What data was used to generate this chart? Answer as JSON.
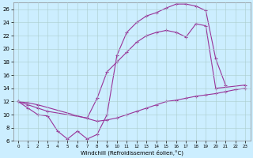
{
  "xlabel": "Windchill (Refroidissement éolien,°C)",
  "background_color": "#cceeff",
  "grid_color": "#aacccc",
  "line_color": "#993399",
  "xlim": [
    -0.5,
    23.5
  ],
  "ylim": [
    6,
    27
  ],
  "yticks": [
    6,
    8,
    10,
    12,
    14,
    16,
    18,
    20,
    22,
    24,
    26
  ],
  "xticks": [
    0,
    1,
    2,
    3,
    4,
    5,
    6,
    7,
    8,
    9,
    10,
    11,
    12,
    13,
    14,
    15,
    16,
    17,
    18,
    19,
    20,
    21,
    22,
    23
  ],
  "line1_x": [
    0,
    1,
    2,
    3,
    4,
    5,
    6,
    7,
    8,
    9,
    10,
    11,
    12,
    13,
    14,
    15,
    16,
    17,
    18,
    19,
    20,
    21
  ],
  "line1_y": [
    12,
    11,
    10,
    9.8,
    7.5,
    6.3,
    7.5,
    6.3,
    7.0,
    10.0,
    19.0,
    22.5,
    24.0,
    25.0,
    25.5,
    26.2,
    26.8,
    26.8,
    26.5,
    25.8,
    18.5,
    14.5
  ],
  "line2_x": [
    0,
    1,
    2,
    3,
    7,
    8,
    9,
    10,
    11,
    12,
    13,
    14,
    15,
    16,
    17,
    18,
    19,
    20,
    23
  ],
  "line2_y": [
    12,
    11.5,
    11.0,
    10.5,
    9.5,
    12.5,
    16.5,
    18.0,
    19.5,
    21.0,
    22.0,
    22.5,
    22.8,
    22.5,
    21.8,
    23.8,
    23.5,
    14.0,
    14.5
  ],
  "line3_x": [
    0,
    1,
    2,
    8,
    9,
    10,
    11,
    12,
    13,
    14,
    15,
    16,
    17,
    18,
    19,
    20,
    21,
    22,
    23
  ],
  "line3_y": [
    12,
    11.8,
    11.5,
    9.0,
    9.2,
    9.5,
    10.0,
    10.5,
    11.0,
    11.5,
    12.0,
    12.2,
    12.5,
    12.8,
    13.0,
    13.2,
    13.5,
    13.8,
    14.0
  ]
}
